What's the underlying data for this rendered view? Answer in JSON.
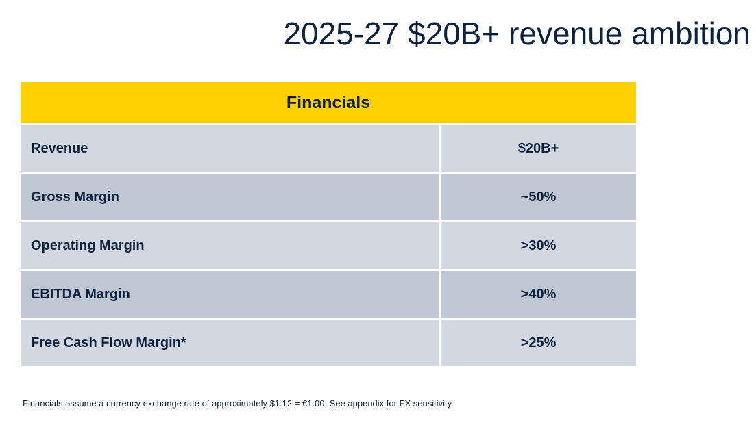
{
  "title": "2025-27 $20B+ revenue ambition",
  "table": {
    "header": "Financials",
    "rows": [
      {
        "label": "Revenue",
        "value": "$20B+"
      },
      {
        "label": "Gross Margin",
        "value": "~50%"
      },
      {
        "label": "Operating Margin",
        "value": ">30%"
      },
      {
        "label": "EBITDA Margin",
        "value": ">40%"
      },
      {
        "label": "Free Cash Flow Margin*",
        "value": ">25%"
      }
    ]
  },
  "footnote": "Financials assume a currency exchange rate of approximately $1.12 = €1.00. See appendix for FX sensitivity",
  "colors": {
    "navy": "#0d2240",
    "header_yellow": "#ffd100",
    "row_light": "#d3d8e0",
    "row_dark": "#bfc7d2"
  }
}
